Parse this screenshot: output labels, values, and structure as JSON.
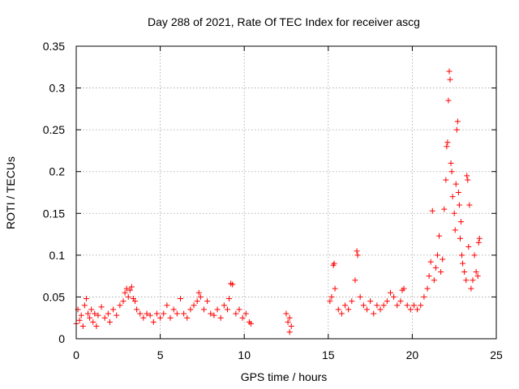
{
  "chart_data": {
    "type": "scatter",
    "title": "Day 288 of 2021, Rate Of TEC Index for receiver ascg",
    "xlabel": "GPS time / hours",
    "ylabel": "ROTI / TECUs",
    "xlim": [
      0,
      25
    ],
    "ylim": [
      0,
      0.35
    ],
    "xticks": [
      0,
      5,
      10,
      15,
      20,
      25
    ],
    "xtick_labels": [
      "0",
      "5",
      "10",
      "15",
      "20",
      "25"
    ],
    "yticks": [
      0,
      0.05,
      0.1,
      0.15,
      0.2,
      0.25,
      0.3,
      0.35
    ],
    "ytick_labels": [
      "0",
      "0.05",
      "0.1",
      "0.15",
      "0.2",
      "0.25",
      "0.3",
      "0.35"
    ],
    "grid": true,
    "marker": "+",
    "color": "#ff0000",
    "series": [
      {
        "points": [
          [
            0.0,
            0.018
          ],
          [
            0.1,
            0.035
          ],
          [
            0.2,
            0.022
          ],
          [
            0.3,
            0.028
          ],
          [
            0.4,
            0.015
          ],
          [
            0.5,
            0.04
          ],
          [
            0.6,
            0.048
          ],
          [
            0.7,
            0.03
          ],
          [
            0.8,
            0.025
          ],
          [
            0.9,
            0.035
          ],
          [
            1.0,
            0.02
          ],
          [
            1.1,
            0.03
          ],
          [
            1.2,
            0.015
          ],
          [
            1.3,
            0.028
          ],
          [
            1.5,
            0.038
          ],
          [
            1.7,
            0.025
          ],
          [
            1.9,
            0.03
          ],
          [
            2.0,
            0.02
          ],
          [
            2.2,
            0.035
          ],
          [
            2.4,
            0.028
          ],
          [
            2.6,
            0.04
          ],
          [
            2.8,
            0.045
          ],
          [
            2.9,
            0.055
          ],
          [
            3.0,
            0.06
          ],
          [
            3.1,
            0.05
          ],
          [
            3.2,
            0.058
          ],
          [
            3.3,
            0.062
          ],
          [
            3.4,
            0.048
          ],
          [
            3.5,
            0.045
          ],
          [
            3.6,
            0.035
          ],
          [
            3.8,
            0.03
          ],
          [
            4.0,
            0.025
          ],
          [
            4.2,
            0.03
          ],
          [
            4.4,
            0.028
          ],
          [
            4.6,
            0.02
          ],
          [
            4.8,
            0.03
          ],
          [
            5.0,
            0.025
          ],
          [
            5.2,
            0.03
          ],
          [
            5.4,
            0.04
          ],
          [
            5.6,
            0.025
          ],
          [
            5.8,
            0.035
          ],
          [
            6.0,
            0.03
          ],
          [
            6.2,
            0.048
          ],
          [
            6.4,
            0.03
          ],
          [
            6.6,
            0.025
          ],
          [
            6.8,
            0.035
          ],
          [
            7.0,
            0.04
          ],
          [
            7.2,
            0.045
          ],
          [
            7.3,
            0.055
          ],
          [
            7.4,
            0.05
          ],
          [
            7.6,
            0.035
          ],
          [
            7.8,
            0.045
          ],
          [
            8.0,
            0.03
          ],
          [
            8.2,
            0.028
          ],
          [
            8.4,
            0.035
          ],
          [
            8.6,
            0.025
          ],
          [
            8.8,
            0.04
          ],
          [
            9.0,
            0.035
          ],
          [
            9.1,
            0.048
          ],
          [
            9.2,
            0.066
          ],
          [
            9.3,
            0.065
          ],
          [
            9.5,
            0.03
          ],
          [
            9.7,
            0.035
          ],
          [
            9.9,
            0.025
          ],
          [
            10.1,
            0.03
          ],
          [
            10.3,
            0.02
          ],
          [
            10.4,
            0.018
          ],
          [
            12.5,
            0.03
          ],
          [
            12.6,
            0.02
          ],
          [
            12.7,
            0.025
          ],
          [
            12.8,
            0.015
          ],
          [
            12.7,
            0.008
          ],
          [
            15.1,
            0.045
          ],
          [
            15.2,
            0.05
          ],
          [
            15.3,
            0.088
          ],
          [
            15.35,
            0.09
          ],
          [
            15.4,
            0.06
          ],
          [
            15.6,
            0.035
          ],
          [
            15.8,
            0.03
          ],
          [
            16.0,
            0.04
          ],
          [
            16.2,
            0.035
          ],
          [
            16.4,
            0.045
          ],
          [
            16.6,
            0.07
          ],
          [
            16.7,
            0.105
          ],
          [
            16.75,
            0.1
          ],
          [
            16.9,
            0.05
          ],
          [
            17.1,
            0.04
          ],
          [
            17.3,
            0.035
          ],
          [
            17.5,
            0.045
          ],
          [
            17.7,
            0.03
          ],
          [
            17.9,
            0.04
          ],
          [
            18.1,
            0.035
          ],
          [
            18.3,
            0.04
          ],
          [
            18.5,
            0.045
          ],
          [
            18.7,
            0.055
          ],
          [
            18.9,
            0.05
          ],
          [
            19.1,
            0.04
          ],
          [
            19.3,
            0.045
          ],
          [
            19.4,
            0.058
          ],
          [
            19.5,
            0.06
          ],
          [
            19.7,
            0.04
          ],
          [
            19.9,
            0.035
          ],
          [
            20.1,
            0.04
          ],
          [
            20.3,
            0.035
          ],
          [
            20.5,
            0.04
          ],
          [
            20.7,
            0.05
          ],
          [
            20.9,
            0.06
          ],
          [
            21.0,
            0.075
          ],
          [
            21.1,
            0.092
          ],
          [
            21.2,
            0.153
          ],
          [
            21.3,
            0.07
          ],
          [
            21.4,
            0.085
          ],
          [
            21.5,
            0.1
          ],
          [
            21.6,
            0.123
          ],
          [
            21.7,
            0.08
          ],
          [
            21.8,
            0.095
          ],
          [
            21.9,
            0.155
          ],
          [
            22.0,
            0.19
          ],
          [
            22.05,
            0.23
          ],
          [
            22.1,
            0.235
          ],
          [
            22.15,
            0.285
          ],
          [
            22.2,
            0.32
          ],
          [
            22.25,
            0.31
          ],
          [
            22.3,
            0.21
          ],
          [
            22.35,
            0.2
          ],
          [
            22.4,
            0.17
          ],
          [
            22.5,
            0.15
          ],
          [
            22.55,
            0.13
          ],
          [
            22.6,
            0.185
          ],
          [
            22.65,
            0.25
          ],
          [
            22.7,
            0.26
          ],
          [
            22.75,
            0.175
          ],
          [
            22.8,
            0.16
          ],
          [
            22.85,
            0.12
          ],
          [
            22.9,
            0.14
          ],
          [
            22.95,
            0.1
          ],
          [
            23.0,
            0.09
          ],
          [
            23.1,
            0.08
          ],
          [
            23.2,
            0.07
          ],
          [
            23.25,
            0.195
          ],
          [
            23.3,
            0.19
          ],
          [
            23.35,
            0.11
          ],
          [
            23.4,
            0.16
          ],
          [
            23.5,
            0.06
          ],
          [
            23.6,
            0.07
          ],
          [
            23.7,
            0.1
          ],
          [
            23.8,
            0.08
          ],
          [
            23.9,
            0.075
          ],
          [
            23.95,
            0.115
          ],
          [
            24.0,
            0.12
          ]
        ]
      }
    ]
  }
}
